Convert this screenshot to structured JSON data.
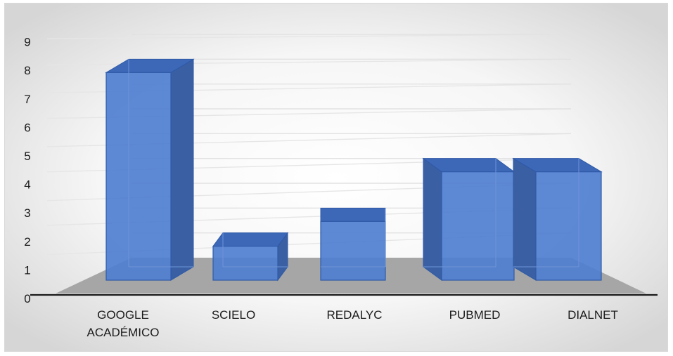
{
  "chart_data": {
    "type": "bar",
    "categories": [
      "GOOGLE ACADÉMICO",
      "SCIELO",
      "REDALYC",
      "PUBMED",
      "DIALNET"
    ],
    "category_lines": [
      [
        "GOOGLE",
        "ACADÉMICO"
      ],
      [
        "SCIELO"
      ],
      [
        "REDALYC"
      ],
      [
        "PUBMED"
      ],
      [
        "DIALNET"
      ]
    ],
    "values": [
      8,
      1,
      2,
      4,
      4
    ],
    "title": "",
    "xlabel": "",
    "ylabel": "",
    "ylim": [
      0,
      9
    ],
    "yticks": [
      "0",
      "1",
      "2",
      "3",
      "4",
      "5",
      "6",
      "7",
      "8",
      "9"
    ],
    "grid": true,
    "legend": "none",
    "style": "3d-column",
    "colors": {
      "bar_front": "#4f7ed0",
      "bar_side": "#3a5fa3",
      "bar_top": "#3d68b8",
      "bar_edge": "#2e5aa8",
      "floor": "#a6a6a6",
      "axis": "#1a1a1a",
      "gridline": "#e6e6e6"
    }
  }
}
